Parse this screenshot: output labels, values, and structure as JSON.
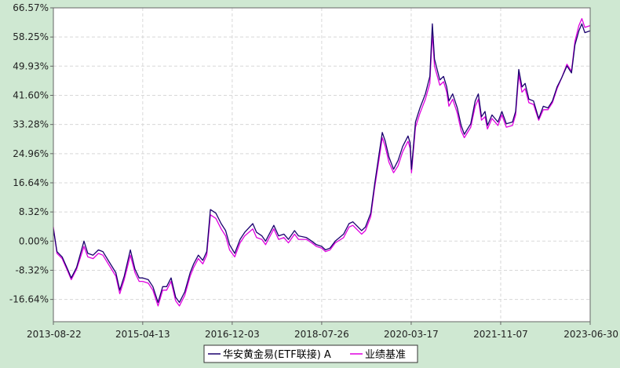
{
  "chart_data": {
    "type": "line",
    "title": "",
    "xlabel": "",
    "ylabel": "",
    "x_ticks": [
      "2013-08-22",
      "2015-04-13",
      "2016-12-03",
      "2018-07-26",
      "2020-03-17",
      "2021-11-07",
      "2023-06-30"
    ],
    "y_ticks": [
      "66.57%",
      "58.25%",
      "49.93%",
      "41.60%",
      "33.28%",
      "24.96%",
      "16.64%",
      "8.32%",
      "0.00%",
      "-8.32%",
      "-16.64%"
    ],
    "xlim": [
      "2013-08-22",
      "2023-06-30"
    ],
    "ylim": [
      -23.0,
      66.57
    ],
    "grid": true,
    "legend_position": "bottom-center",
    "colors": {
      "fund": "#1a006e",
      "benchmark": "#e000e0",
      "grid": "#d8d8d8",
      "plot_bg": "#ffffff",
      "page_bg": "#cfe8d2"
    },
    "series": [
      {
        "name": "华安黄金易(ETF联接) A",
        "color": "#1a006e",
        "points": [
          [
            "2013-08-22",
            3.5
          ],
          [
            "2013-09-15",
            -3.0
          ],
          [
            "2013-10-20",
            -4.5
          ],
          [
            "2013-11-25",
            -8.0
          ],
          [
            "2013-12-20",
            -10.5
          ],
          [
            "2014-01-25",
            -7.5
          ],
          [
            "2014-03-15",
            0.0
          ],
          [
            "2014-04-10",
            -3.5
          ],
          [
            "2014-05-15",
            -4.0
          ],
          [
            "2014-06-20",
            -2.5
          ],
          [
            "2014-07-20",
            -3.0
          ],
          [
            "2014-09-01",
            -6.0
          ],
          [
            "2014-10-15",
            -9.0
          ],
          [
            "2014-11-10",
            -14.0
          ],
          [
            "2014-12-10",
            -10.0
          ],
          [
            "2015-01-20",
            -2.5
          ],
          [
            "2015-02-20",
            -8.0
          ],
          [
            "2015-03-20",
            -10.5
          ],
          [
            "2015-04-13",
            -10.5
          ],
          [
            "2015-05-20",
            -11.0
          ],
          [
            "2015-06-20",
            -13.0
          ],
          [
            "2015-07-25",
            -17.5
          ],
          [
            "2015-08-25",
            -13.0
          ],
          [
            "2015-09-20",
            -13.0
          ],
          [
            "2015-10-20",
            -10.5
          ],
          [
            "2015-11-20",
            -16.0
          ],
          [
            "2015-12-15",
            -17.5
          ],
          [
            "2016-01-20",
            -14.5
          ],
          [
            "2016-02-25",
            -9.0
          ],
          [
            "2016-03-20",
            -6.5
          ],
          [
            "2016-04-20",
            -4.0
          ],
          [
            "2016-05-20",
            -5.5
          ],
          [
            "2016-06-15",
            -3.0
          ],
          [
            "2016-07-10",
            9.0
          ],
          [
            "2016-08-15",
            8.0
          ],
          [
            "2016-09-20",
            5.0
          ],
          [
            "2016-10-20",
            3.0
          ],
          [
            "2016-11-15",
            -1.0
          ],
          [
            "2016-12-20",
            -3.5
          ],
          [
            "2017-01-25",
            0.5
          ],
          [
            "2017-02-25",
            2.5
          ],
          [
            "2017-04-20",
            5.0
          ],
          [
            "2017-05-15",
            2.5
          ],
          [
            "2017-06-20",
            1.5
          ],
          [
            "2017-07-15",
            0.0
          ],
          [
            "2017-09-08",
            4.5
          ],
          [
            "2017-10-10",
            1.5
          ],
          [
            "2017-11-15",
            2.0
          ],
          [
            "2017-12-15",
            0.5
          ],
          [
            "2018-01-25",
            3.0
          ],
          [
            "2018-02-20",
            1.5
          ],
          [
            "2018-04-15",
            1.0
          ],
          [
            "2018-05-20",
            0.0
          ],
          [
            "2018-06-20",
            -1.0
          ],
          [
            "2018-07-26",
            -1.5
          ],
          [
            "2018-08-20",
            -2.5
          ],
          [
            "2018-09-20",
            -2.0
          ],
          [
            "2018-10-25",
            0.0
          ],
          [
            "2018-12-20",
            2.0
          ],
          [
            "2019-01-25",
            5.0
          ],
          [
            "2019-02-20",
            5.5
          ],
          [
            "2019-04-20",
            3.0
          ],
          [
            "2019-05-15",
            4.0
          ],
          [
            "2019-06-20",
            8.0
          ],
          [
            "2019-07-15",
            16.0
          ],
          [
            "2019-08-15",
            25.0
          ],
          [
            "2019-09-05",
            31.0
          ],
          [
            "2019-09-25",
            28.5
          ],
          [
            "2019-10-20",
            24.0
          ],
          [
            "2019-11-20",
            20.5
          ],
          [
            "2019-12-20",
            23.0
          ],
          [
            "2020-01-20",
            27.0
          ],
          [
            "2020-02-25",
            30.0
          ],
          [
            "2020-03-10",
            28.0
          ],
          [
            "2020-03-19",
            20.5
          ],
          [
            "2020-04-15",
            34.0
          ],
          [
            "2020-05-15",
            38.0
          ],
          [
            "2020-06-20",
            42.0
          ],
          [
            "2020-07-20",
            47.0
          ],
          [
            "2020-08-06",
            62.0
          ],
          [
            "2020-08-20",
            52.0
          ],
          [
            "2020-09-25",
            46.0
          ],
          [
            "2020-10-20",
            47.0
          ],
          [
            "2020-11-10",
            44.0
          ],
          [
            "2020-11-25",
            40.0
          ],
          [
            "2020-12-20",
            42.0
          ],
          [
            "2021-01-20",
            38.0
          ],
          [
            "2021-02-15",
            33.0
          ],
          [
            "2021-03-08",
            30.5
          ],
          [
            "2021-04-20",
            33.5
          ],
          [
            "2021-05-20",
            40.0
          ],
          [
            "2021-06-10",
            42.0
          ],
          [
            "2021-07-01",
            35.5
          ],
          [
            "2021-07-25",
            37.0
          ],
          [
            "2021-08-10",
            33.0
          ],
          [
            "2021-09-10",
            36.0
          ],
          [
            "2021-10-20",
            34.0
          ],
          [
            "2021-11-15",
            37.0
          ],
          [
            "2021-12-15",
            33.5
          ],
          [
            "2022-01-25",
            34.0
          ],
          [
            "2022-02-15",
            37.0
          ],
          [
            "2022-03-08",
            49.0
          ],
          [
            "2022-03-30",
            44.0
          ],
          [
            "2022-04-20",
            45.0
          ],
          [
            "2022-05-15",
            40.5
          ],
          [
            "2022-06-15",
            40.0
          ],
          [
            "2022-07-20",
            35.0
          ],
          [
            "2022-08-20",
            38.5
          ],
          [
            "2022-09-20",
            38.0
          ],
          [
            "2022-10-20",
            40.0
          ],
          [
            "2022-11-20",
            44.0
          ],
          [
            "2022-12-20",
            46.5
          ],
          [
            "2023-01-25",
            50.0
          ],
          [
            "2023-02-25",
            48.0
          ],
          [
            "2023-03-20",
            56.0
          ],
          [
            "2023-04-15",
            60.0
          ],
          [
            "2023-05-05",
            62.0
          ],
          [
            "2023-05-25",
            59.5
          ],
          [
            "2023-06-30",
            60.0
          ]
        ]
      },
      {
        "name": "业绩基准",
        "color": "#e000e0",
        "points": [
          [
            "2013-08-22",
            4.0
          ],
          [
            "2013-09-15",
            -3.5
          ],
          [
            "2013-10-20",
            -5.0
          ],
          [
            "2013-11-25",
            -8.5
          ],
          [
            "2013-12-20",
            -11.0
          ],
          [
            "2014-01-25",
            -8.0
          ],
          [
            "2014-03-15",
            -1.5
          ],
          [
            "2014-04-10",
            -4.5
          ],
          [
            "2014-05-15",
            -5.0
          ],
          [
            "2014-06-20",
            -3.5
          ],
          [
            "2014-07-20",
            -4.0
          ],
          [
            "2014-09-01",
            -7.0
          ],
          [
            "2014-10-15",
            -10.0
          ],
          [
            "2014-11-10",
            -15.0
          ],
          [
            "2014-12-10",
            -11.0
          ],
          [
            "2015-01-20",
            -4.0
          ],
          [
            "2015-02-20",
            -9.0
          ],
          [
            "2015-03-20",
            -11.5
          ],
          [
            "2015-04-13",
            -11.5
          ],
          [
            "2015-05-20",
            -12.0
          ],
          [
            "2015-06-20",
            -14.0
          ],
          [
            "2015-07-25",
            -18.5
          ],
          [
            "2015-08-25",
            -14.0
          ],
          [
            "2015-09-20",
            -14.0
          ],
          [
            "2015-10-20",
            -11.5
          ],
          [
            "2015-11-20",
            -17.0
          ],
          [
            "2015-12-15",
            -18.5
          ],
          [
            "2016-01-20",
            -15.5
          ],
          [
            "2016-02-25",
            -10.0
          ],
          [
            "2016-03-20",
            -7.5
          ],
          [
            "2016-04-20",
            -5.0
          ],
          [
            "2016-05-20",
            -6.5
          ],
          [
            "2016-06-15",
            -4.0
          ],
          [
            "2016-07-10",
            7.5
          ],
          [
            "2016-08-15",
            6.5
          ],
          [
            "2016-09-20",
            3.5
          ],
          [
            "2016-10-20",
            1.5
          ],
          [
            "2016-11-15",
            -2.5
          ],
          [
            "2016-12-20",
            -4.5
          ],
          [
            "2017-01-25",
            -0.5
          ],
          [
            "2017-02-25",
            1.5
          ],
          [
            "2017-04-20",
            3.5
          ],
          [
            "2017-05-15",
            1.0
          ],
          [
            "2017-06-20",
            0.5
          ],
          [
            "2017-07-15",
            -1.0
          ],
          [
            "2017-09-08",
            3.5
          ],
          [
            "2017-10-10",
            0.5
          ],
          [
            "2017-11-15",
            1.0
          ],
          [
            "2017-12-15",
            -0.5
          ],
          [
            "2018-01-25",
            2.0
          ],
          [
            "2018-02-20",
            0.5
          ],
          [
            "2018-04-15",
            0.5
          ],
          [
            "2018-05-20",
            -0.5
          ],
          [
            "2018-06-20",
            -1.5
          ],
          [
            "2018-07-26",
            -2.0
          ],
          [
            "2018-08-20",
            -3.0
          ],
          [
            "2018-09-20",
            -2.5
          ],
          [
            "2018-10-25",
            -0.5
          ],
          [
            "2018-12-20",
            1.0
          ],
          [
            "2019-01-25",
            4.0
          ],
          [
            "2019-02-20",
            4.5
          ],
          [
            "2019-04-20",
            2.0
          ],
          [
            "2019-05-15",
            3.0
          ],
          [
            "2019-06-20",
            7.0
          ],
          [
            "2019-07-15",
            15.0
          ],
          [
            "2019-08-15",
            23.5
          ],
          [
            "2019-09-05",
            29.5
          ],
          [
            "2019-09-25",
            27.0
          ],
          [
            "2019-10-20",
            22.5
          ],
          [
            "2019-11-20",
            19.5
          ],
          [
            "2019-12-20",
            21.5
          ],
          [
            "2020-01-20",
            25.5
          ],
          [
            "2020-02-25",
            28.5
          ],
          [
            "2020-03-10",
            26.5
          ],
          [
            "2020-03-19",
            19.5
          ],
          [
            "2020-04-15",
            32.5
          ],
          [
            "2020-05-15",
            36.5
          ],
          [
            "2020-06-20",
            40.5
          ],
          [
            "2020-07-20",
            45.0
          ],
          [
            "2020-08-06",
            59.5
          ],
          [
            "2020-08-20",
            50.0
          ],
          [
            "2020-09-25",
            44.5
          ],
          [
            "2020-10-20",
            45.5
          ],
          [
            "2020-11-10",
            42.5
          ],
          [
            "2020-11-25",
            38.5
          ],
          [
            "2020-12-20",
            40.5
          ],
          [
            "2021-01-20",
            36.5
          ],
          [
            "2021-02-15",
            31.5
          ],
          [
            "2021-03-08",
            29.5
          ],
          [
            "2021-04-20",
            32.5
          ],
          [
            "2021-05-20",
            38.5
          ],
          [
            "2021-06-10",
            40.5
          ],
          [
            "2021-07-01",
            34.5
          ],
          [
            "2021-07-25",
            35.5
          ],
          [
            "2021-08-10",
            32.0
          ],
          [
            "2021-09-10",
            35.0
          ],
          [
            "2021-10-20",
            33.0
          ],
          [
            "2021-11-15",
            36.0
          ],
          [
            "2021-12-15",
            32.5
          ],
          [
            "2022-01-25",
            33.0
          ],
          [
            "2022-02-15",
            36.0
          ],
          [
            "2022-03-08",
            47.5
          ],
          [
            "2022-03-30",
            42.5
          ],
          [
            "2022-04-20",
            43.5
          ],
          [
            "2022-05-15",
            39.5
          ],
          [
            "2022-06-15",
            39.0
          ],
          [
            "2022-07-20",
            34.5
          ],
          [
            "2022-08-20",
            37.5
          ],
          [
            "2022-09-20",
            37.5
          ],
          [
            "2022-10-20",
            39.5
          ],
          [
            "2022-11-20",
            43.5
          ],
          [
            "2022-12-20",
            46.5
          ],
          [
            "2023-01-25",
            50.5
          ],
          [
            "2023-02-25",
            48.5
          ],
          [
            "2023-03-20",
            57.0
          ],
          [
            "2023-04-15",
            61.5
          ],
          [
            "2023-05-05",
            63.5
          ],
          [
            "2023-05-25",
            61.0
          ],
          [
            "2023-06-30",
            61.5
          ]
        ]
      }
    ]
  }
}
